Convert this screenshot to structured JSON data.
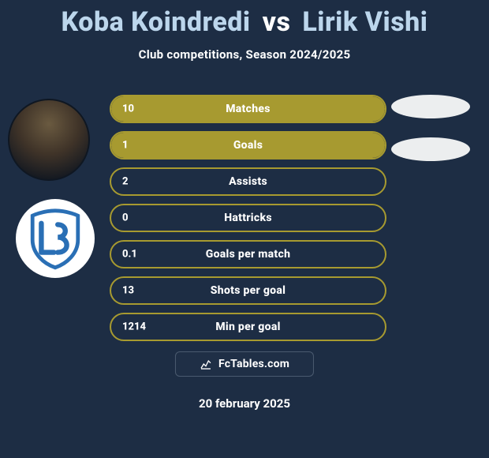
{
  "background_color": "#1d2d44",
  "title": {
    "player1": "Koba Koindredi",
    "vs": "vs",
    "player2": "Lirik Vishi",
    "player_color": "#bcd6ec",
    "vs_color": "#ffffff",
    "fontsize": 34
  },
  "subtitle": {
    "text": "Club competitions, Season 2024/2025",
    "fontsize": 15,
    "color": "#ffffff"
  },
  "player_photo": {
    "name": "player1-avatar"
  },
  "club_badge": {
    "name": "club-lausanne-badge",
    "shield_fill": "#ffffff",
    "shield_stroke": "#2a6fb5",
    "letters": "LS",
    "letters_color": "#2a6fb5"
  },
  "stats_style": {
    "type": "bar",
    "pill_height": 36,
    "pill_radius": 18,
    "border_color": "#a79a30",
    "fill_color": "#a79a30",
    "track_color": "transparent",
    "text_color": "#ffffff",
    "label_fontsize": 14,
    "value_fontsize": 13,
    "gap": 10
  },
  "stats": [
    {
      "label": "Matches",
      "value": "10",
      "fill_pct": 100
    },
    {
      "label": "Goals",
      "value": "1",
      "fill_pct": 100
    },
    {
      "label": "Assists",
      "value": "2",
      "fill_pct": 0
    },
    {
      "label": "Hattricks",
      "value": "0",
      "fill_pct": 0
    },
    {
      "label": "Goals per match",
      "value": "0.1",
      "fill_pct": 0
    },
    {
      "label": "Shots per goal",
      "value": "13",
      "fill_pct": 0
    },
    {
      "label": "Min per goal",
      "value": "1214",
      "fill_pct": 0
    }
  ],
  "right_blobs": {
    "count": 2,
    "color": "#eceeef"
  },
  "site": {
    "text": "FcTables.com",
    "icon": "spark-chart-icon"
  },
  "date": {
    "text": "20 february 2025"
  }
}
